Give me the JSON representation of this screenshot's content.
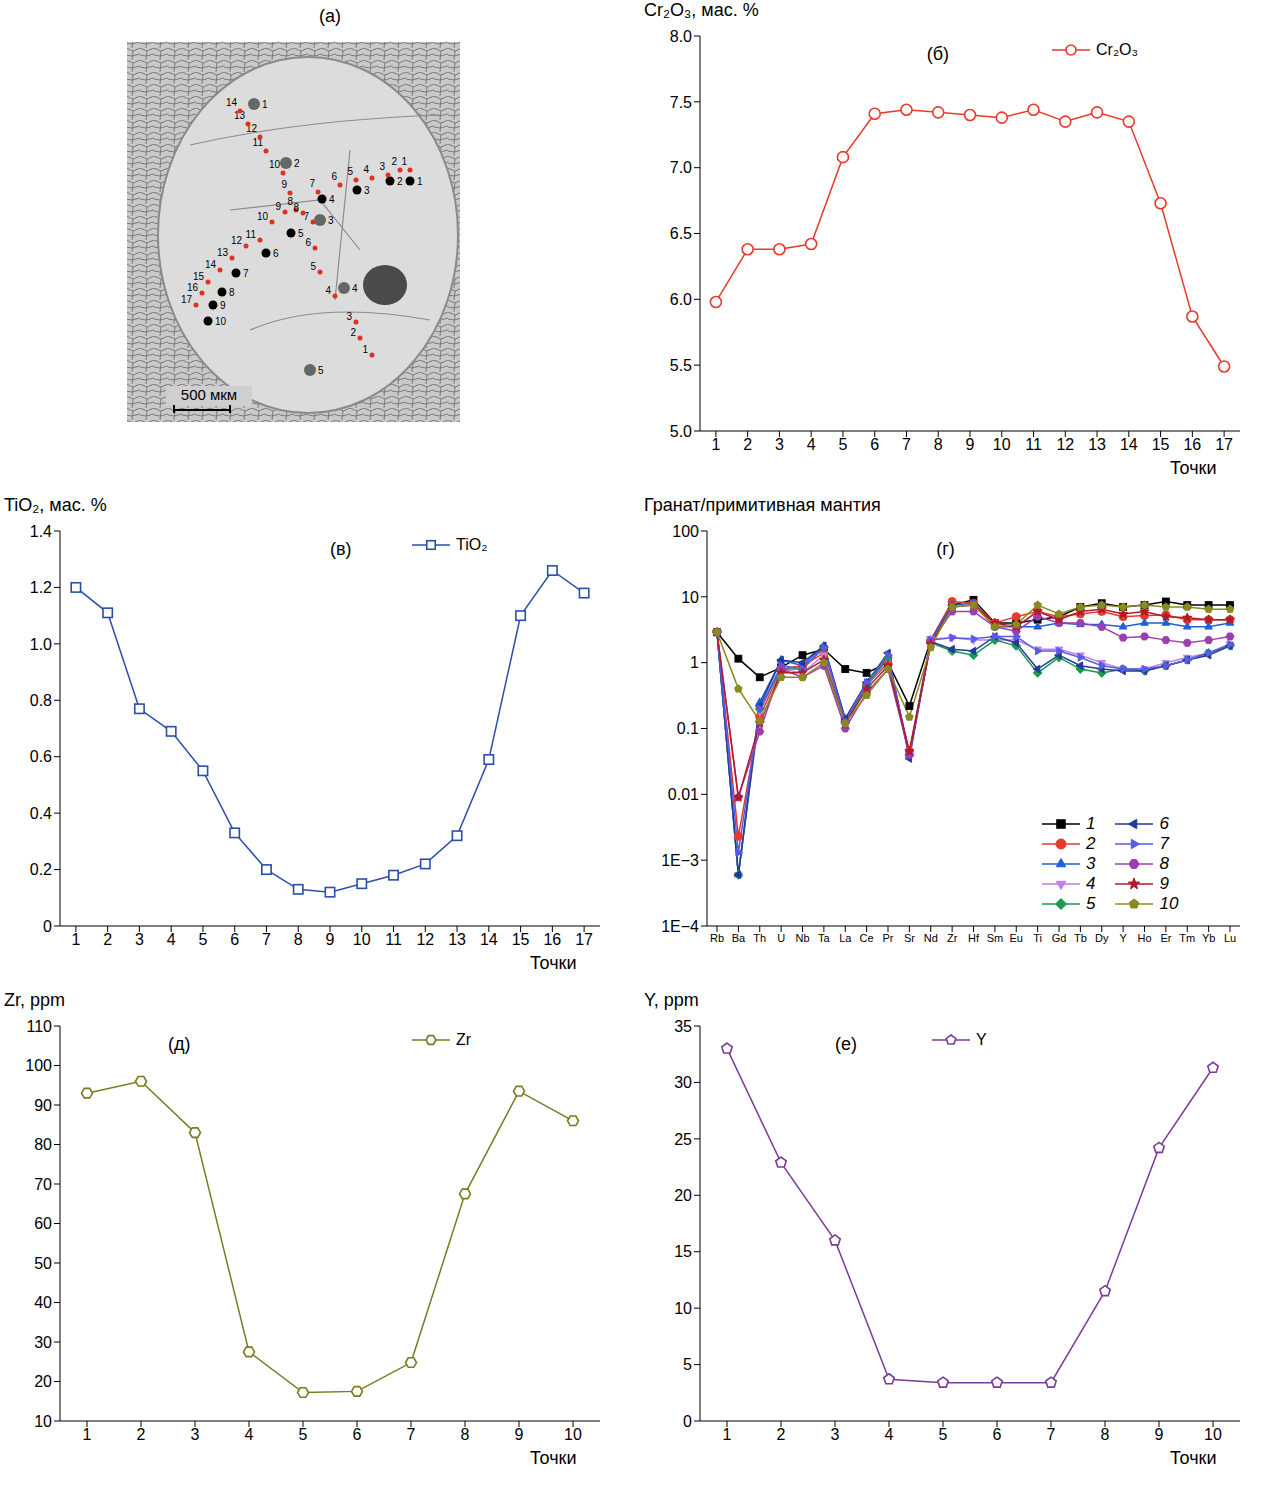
{
  "chart_data": [
    {
      "type": "line",
      "label": "(б)",
      "y_label": "Cr₂O₃, мас. %",
      "x_label": "Точки",
      "x": [
        1,
        2,
        3,
        4,
        5,
        6,
        7,
        8,
        9,
        10,
        11,
        12,
        13,
        14,
        15,
        16,
        17
      ],
      "series": [
        {
          "name": "Cr₂O₃",
          "color": "#e8392b",
          "marker": "open-circle",
          "values": [
            5.98,
            6.38,
            6.38,
            6.42,
            7.08,
            7.41,
            7.44,
            7.42,
            7.4,
            7.38,
            7.44,
            7.35,
            7.42,
            7.35,
            6.73,
            5.87,
            5.49
          ]
        }
      ],
      "xlim": [
        0.5,
        17.5
      ],
      "xticks": [
        1,
        2,
        3,
        4,
        5,
        6,
        7,
        8,
        9,
        10,
        11,
        12,
        13,
        14,
        15,
        16,
        17
      ],
      "ylim": [
        5,
        8
      ],
      "yticks": [
        {
          "value": 5,
          "label": "5.0"
        },
        5.5,
        {
          "value": 6,
          "label": "6.0"
        },
        6.5,
        {
          "value": 7,
          "label": "7.0"
        },
        7.5,
        {
          "value": 8,
          "label": "8.0"
        }
      ],
      "legend": "upper right"
    },
    {
      "type": "line",
      "label": "(в)",
      "y_label": "TiO₂, мас. %",
      "x_label": "Точки",
      "x": [
        1,
        2,
        3,
        4,
        5,
        6,
        7,
        8,
        9,
        10,
        11,
        12,
        13,
        14,
        15,
        16,
        17
      ],
      "series": [
        {
          "name": "TiO₂",
          "color": "#2b4fa8",
          "marker": "open-square",
          "values": [
            1.2,
            1.11,
            0.77,
            0.69,
            0.55,
            0.33,
            0.2,
            0.13,
            0.12,
            0.15,
            0.18,
            0.22,
            0.32,
            0.59,
            1.1,
            1.26,
            1.18
          ]
        }
      ],
      "xlim": [
        0.5,
        17.5
      ],
      "xticks": [
        1,
        2,
        3,
        4,
        5,
        6,
        7,
        8,
        9,
        10,
        11,
        12,
        13,
        14,
        15,
        16,
        17
      ],
      "ylim": [
        0,
        1.4
      ],
      "yticks": [
        0,
        0.2,
        0.4,
        0.6,
        0.8,
        {
          "value": 1,
          "label": "1.0"
        },
        1.2,
        1.4
      ],
      "legend": "upper right"
    },
    {
      "type": "line",
      "label": "(г)",
      "y_label": "Гранат/примитивная мантия",
      "categories": [
        "Rb",
        "Ba",
        "Th",
        "U",
        "Nb",
        "Ta",
        "La",
        "Ce",
        "Pr",
        "Sr",
        "Nd",
        "Zr",
        "Hf",
        "Sm",
        "Eu",
        "Ti",
        "Gd",
        "Tb",
        "Dy",
        "Y",
        "Ho",
        "Er",
        "Tm",
        "Yb",
        "Lu"
      ],
      "series": [
        {
          "name": "1",
          "color": "#000000",
          "marker": "square",
          "values": [
            2.9,
            1.15,
            0.6,
            0.85,
            1.3,
            1.6,
            0.8,
            0.7,
            1.0,
            0.22,
            2.2,
            7.5,
            9,
            4,
            4,
            4.5,
            5,
            7,
            8,
            7,
            7.5,
            8.5,
            7.5,
            7.5,
            7.5
          ]
        },
        {
          "name": "2",
          "color": "#e8392b",
          "marker": "circle",
          "values": [
            2.9,
            0.0023,
            0.15,
            0.8,
            0.9,
            1.4,
            0.13,
            0.45,
            1.0,
            0.045,
            2.2,
            8.5,
            8,
            4,
            5,
            6,
            5,
            5.5,
            6,
            5,
            5.2,
            5.3,
            4.5,
            4.5,
            4.5
          ]
        },
        {
          "name": "3",
          "color": "#1f5fd6",
          "marker": "triangle",
          "values": [
            2.9,
            0.0006,
            0.25,
            1.1,
            0.9,
            1.8,
            0.14,
            0.5,
            1.2,
            0.04,
            2.2,
            7.5,
            8,
            3.5,
            3.5,
            3.5,
            4,
            3.8,
            3.8,
            3.5,
            4,
            4,
            3.5,
            3.5,
            4
          ]
        },
        {
          "name": "4",
          "color": "#c080e8",
          "marker": "triangle-down",
          "values": [
            2.9,
            0.0006,
            0.18,
            0.8,
            0.7,
            1.3,
            0.12,
            0.45,
            1.1,
            0.04,
            2.3,
            2.4,
            2.2,
            2.2,
            2.2,
            1.6,
            1.6,
            1.3,
            1.0,
            0.8,
            0.8,
            1.0,
            1.2,
            1.4,
            1.9
          ]
        },
        {
          "name": "5",
          "color": "#1a9a50",
          "marker": "diamond",
          "values": [
            2.9,
            0.0006,
            0.2,
            0.8,
            0.8,
            1.7,
            0.12,
            0.45,
            1.2,
            0.04,
            2.0,
            1.5,
            1.3,
            2.2,
            1.8,
            0.7,
            1.2,
            0.8,
            0.7,
            0.8,
            0.75,
            0.9,
            1.1,
            1.4,
            1.8
          ]
        },
        {
          "name": "6",
          "color": "#243a9a",
          "marker": "triangle-left",
          "values": [
            2.9,
            0.0006,
            0.22,
            1.1,
            1.0,
            1.8,
            0.14,
            0.5,
            1.4,
            0.035,
            2.1,
            1.6,
            1.5,
            2.5,
            2.0,
            0.8,
            1.3,
            0.9,
            0.8,
            0.75,
            0.75,
            0.9,
            1.1,
            1.3,
            1.8
          ]
        },
        {
          "name": "7",
          "color": "#5a5ae8",
          "marker": "triangle-right",
          "values": [
            2.9,
            0.0013,
            0.2,
            0.9,
            0.8,
            1.7,
            0.13,
            0.5,
            1.3,
            0.04,
            2.2,
            2.4,
            2.3,
            2.5,
            2.5,
            1.5,
            1.5,
            1.2,
            0.9,
            0.8,
            0.8,
            0.9,
            1.1,
            1.4,
            1.9
          ]
        },
        {
          "name": "8",
          "color": "#9b3fb0",
          "marker": "hexagon",
          "values": [
            2.9,
            0.009,
            0.09,
            0.8,
            0.6,
            0.9,
            0.1,
            0.35,
            0.8,
            0.04,
            2.0,
            6,
            6,
            3.5,
            3,
            5,
            4,
            4,
            3.5,
            2.4,
            2.5,
            2.2,
            2,
            2.2,
            2.5
          ]
        },
        {
          "name": "9",
          "color": "#b01a2a",
          "marker": "star",
          "values": [
            2.9,
            0.009,
            0.12,
            0.7,
            0.7,
            1.1,
            0.12,
            0.4,
            0.9,
            0.045,
            1.9,
            7,
            7.5,
            4,
            3.5,
            6,
            4.5,
            6,
            6.5,
            5.5,
            6,
            5,
            4.8,
            4.5,
            4.5
          ]
        },
        {
          "name": "10",
          "color": "#8a8a20",
          "marker": "pentagon",
          "values": [
            2.9,
            0.4,
            0.13,
            0.6,
            0.6,
            1.0,
            0.12,
            0.32,
            0.8,
            0.15,
            1.7,
            7,
            7.5,
            3.5,
            3.8,
            7.5,
            5.5,
            7,
            7.5,
            7,
            7.5,
            7,
            7,
            6.5,
            6.5
          ]
        }
      ],
      "ylim": [
        0.0001,
        100
      ],
      "yticks": [
        {
          "value": 0.0001,
          "label": "1E−4"
        },
        {
          "value": 0.001,
          "label": "1E−3"
        },
        0.01,
        0.1,
        1,
        10,
        100
      ],
      "log": "y",
      "legend": "lower right"
    },
    {
      "type": "line",
      "label": "(д)",
      "y_label": "Zr, ppm",
      "x_label": "Точки",
      "x": [
        1,
        2,
        3,
        4,
        5,
        6,
        7,
        8,
        9,
        10
      ],
      "series": [
        {
          "name": "Zr",
          "color": "#7a7a1e",
          "marker": "open-hexagon",
          "values": [
            93,
            96,
            83,
            27.5,
            17.2,
            17.5,
            24.8,
            67.5,
            93.5,
            86
          ]
        }
      ],
      "xlim": [
        0.5,
        10.5
      ],
      "xticks": [
        1,
        2,
        3,
        4,
        5,
        6,
        7,
        8,
        9,
        10
      ],
      "ylim": [
        10,
        110
      ],
      "yticks": [
        10,
        20,
        30,
        40,
        50,
        60,
        70,
        80,
        90,
        100,
        110
      ],
      "legend": "upper right"
    },
    {
      "type": "line",
      "label": "(е)",
      "y_label": "Y, ppm",
      "x_label": "Точки",
      "x": [
        1,
        2,
        3,
        4,
        5,
        6,
        7,
        8,
        9,
        10
      ],
      "series": [
        {
          "name": "Y",
          "color": "#7b3b9a",
          "marker": "open-pentagon",
          "values": [
            33,
            22.9,
            16,
            3.7,
            3.4,
            3.4,
            3.4,
            11.5,
            24.2,
            31.3
          ]
        }
      ],
      "xlim": [
        0.5,
        10.5
      ],
      "xticks": [
        1,
        2,
        3,
        4,
        5,
        6,
        7,
        8,
        9,
        10
      ],
      "ylim": [
        0,
        35
      ],
      "yticks": [
        0,
        5,
        10,
        15,
        20,
        25,
        30,
        35
      ],
      "legend": "upper center"
    }
  ],
  "image": {
    "label": "(а)",
    "scale_bar": "500 мкм",
    "red_points_a": [
      "1",
      "2",
      "3",
      "4",
      "5",
      "6",
      "7",
      "8",
      "9",
      "10",
      "11",
      "12",
      "13",
      "14"
    ],
    "red_points_b": [
      "1",
      "2",
      "3",
      "4",
      "5",
      "6",
      "7",
      "8",
      "9",
      "10",
      "11",
      "12",
      "13",
      "14",
      "15",
      "16",
      "17"
    ],
    "black_points": [
      "1",
      "2",
      "3",
      "4",
      "5",
      "6",
      "7",
      "8",
      "9",
      "10"
    ],
    "gray_points": [
      "1",
      "2",
      "3",
      "4",
      "5"
    ]
  }
}
